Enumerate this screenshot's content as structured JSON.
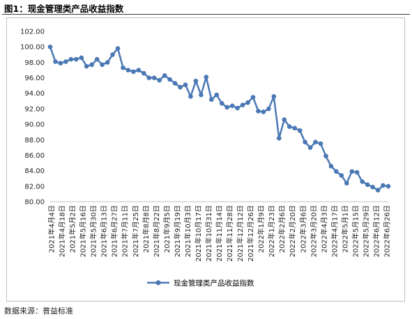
{
  "header": {
    "title": "图1：现金管理类产品收益指数"
  },
  "footer": {
    "source": "数据来源：普益标准"
  },
  "legend": {
    "entry": "现金管理类产品收益指数"
  },
  "chart_data": {
    "type": "line",
    "title": "",
    "xlabel": "",
    "ylabel": "",
    "ylim": [
      80,
      102
    ],
    "yticks": [
      "80.00",
      "82.00",
      "84.00",
      "86.00",
      "88.00",
      "90.00",
      "92.00",
      "94.00",
      "96.00",
      "98.00",
      "100.00",
      "102.00"
    ],
    "legend_position": "bottom",
    "grid": false,
    "line_color": "#4a78b5",
    "x_tick_labels": [
      "2021年4月4日",
      "2021年4月18日",
      "2021年5月2日",
      "2021年5月16日",
      "2021年5月30日",
      "2021年6月13日",
      "2021年6月27日",
      "2021年7月11日",
      "2021年7月25日",
      "2021年8月8日",
      "2021年8月22日",
      "2021年9月5日",
      "2021年9月19日",
      "2021年10月3日",
      "2021年10月17日",
      "2021年10月31日",
      "2021年11月14日",
      "2021年11月28日",
      "2021年12月12日",
      "2021年12月26日",
      "2022年1月9日",
      "2022年1月23日",
      "2022年2月6日",
      "2022年2月20日",
      "2022年3月6日",
      "2022年3月20日",
      "2022年4月3日",
      "2022年4月17日",
      "2022年5月1日",
      "2022年5月15日",
      "2022年5月29日",
      "2022年6月12日",
      "2022年6月26日"
    ],
    "series": [
      {
        "name": "现金管理类产品收益指数",
        "values": [
          100.0,
          98.1,
          97.9,
          98.1,
          98.4,
          98.4,
          98.6,
          97.5,
          97.7,
          98.4,
          97.7,
          98.0,
          99.0,
          99.8,
          97.3,
          97.0,
          96.8,
          97.0,
          96.6,
          96.0,
          96.0,
          95.7,
          96.3,
          95.8,
          95.3,
          94.8,
          95.1,
          93.6,
          95.6,
          93.8,
          96.1,
          93.2,
          93.8,
          92.7,
          92.2,
          92.4,
          92.1,
          92.5,
          92.8,
          93.5,
          91.7,
          91.6,
          92.0,
          93.6,
          88.2,
          90.6,
          89.7,
          89.5,
          89.2,
          87.7,
          87.0,
          87.7,
          87.5,
          85.9,
          84.6,
          83.9,
          83.4,
          82.4,
          83.9,
          83.8,
          82.6,
          82.2,
          81.9,
          81.5,
          82.1,
          82.0
        ]
      }
    ]
  }
}
